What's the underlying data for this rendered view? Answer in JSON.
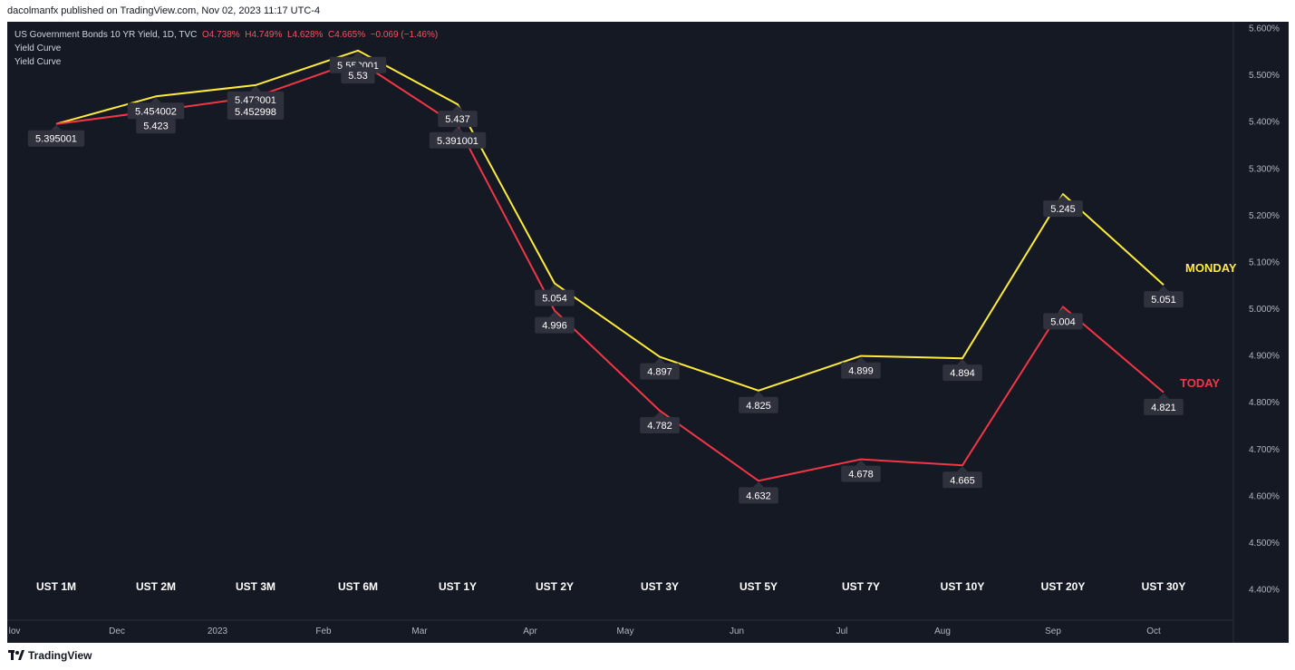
{
  "header": {
    "publisher": "dacolmanfx published on TradingView.com, Nov 02, 2023 11:17 UTC-4"
  },
  "legend": {
    "symbol": "US Government Bonds 10 YR Yield, 1D, TVC",
    "open": "O4.738%",
    "high": "H4.749%",
    "low": "L4.628%",
    "close": "C4.665%",
    "change": "−0.069 (−1.46%)",
    "indicator1": "Yield Curve",
    "indicator2": "Yield Curve"
  },
  "footer": {
    "brand": "TradingView"
  },
  "chart_data": {
    "type": "line",
    "categories": [
      "UST 1M",
      "UST 2M",
      "UST 3M",
      "UST 6M",
      "UST 1Y",
      "UST 2Y",
      "UST 3Y",
      "UST 5Y",
      "UST 7Y",
      "UST 10Y",
      "UST 20Y",
      "UST 30Y"
    ],
    "series": [
      {
        "name": "MONDAY",
        "color": "#ffeb3b",
        "values": [
          5.395001,
          5.454002,
          5.478001,
          5.552001,
          5.437,
          5.054,
          4.897,
          4.825,
          4.899,
          4.894,
          5.245,
          5.051
        ],
        "labels": [
          "",
          "5.454002",
          "5.478001",
          "5.552001",
          "5.437",
          "5.054",
          "4.897",
          "4.825",
          "4.899",
          "4.894",
          "5.245",
          "5.051"
        ]
      },
      {
        "name": "TODAY",
        "color": "#f23645",
        "values": [
          5.395001,
          5.423,
          5.452998,
          5.53,
          5.391001,
          4.996,
          4.782,
          4.632,
          4.678,
          4.665,
          5.004,
          4.821
        ],
        "labels": [
          "5.395001",
          "5.423",
          "5.452998",
          "5.53",
          "5.391001",
          "4.996",
          "4.782",
          "4.632",
          "4.678",
          "4.665",
          "5.004",
          "4.821"
        ]
      }
    ],
    "y_ticks": [
      "5.600%",
      "5.500%",
      "5.400%",
      "5.300%",
      "5.200%",
      "5.100%",
      "5.000%",
      "4.900%",
      "4.800%",
      "4.700%",
      "4.600%",
      "4.500%",
      "4.400%"
    ],
    "ylim": [
      4.4,
      5.6
    ],
    "time_axis": [
      "lov",
      "Dec",
      "2023",
      "Feb",
      "Mar",
      "Apr",
      "May",
      "Jun",
      "Jul",
      "Aug",
      "Sep",
      "Oct"
    ],
    "grid": false,
    "background": "#151924"
  }
}
